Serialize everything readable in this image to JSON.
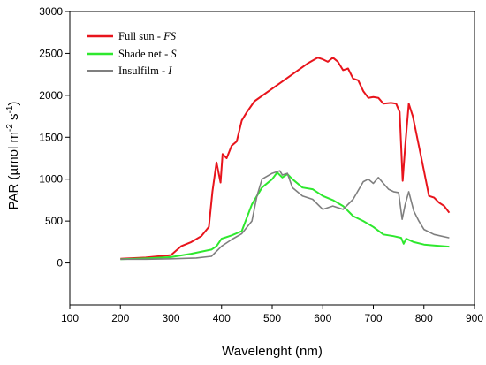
{
  "chart_data": {
    "type": "line",
    "xlabel": "Wavelenght (nm)",
    "ylabel": {
      "prefix": "PAR (µmol m",
      "exp1": "-2",
      "mid": " s",
      "exp2": "-1",
      "suffix": ")"
    },
    "xlim": [
      100,
      900
    ],
    "ylim": [
      -500,
      3000
    ],
    "x_ticks": [
      100,
      200,
      300,
      400,
      500,
      600,
      700,
      800,
      900
    ],
    "y_ticks": [
      0,
      500,
      1000,
      1500,
      2000,
      2500,
      3000
    ],
    "grid": false,
    "legend": "top-left",
    "series": [
      {
        "name": "Full sun - ",
        "name_italic": "FS",
        "color": "#e8141c",
        "points": [
          [
            200,
            50
          ],
          [
            250,
            65
          ],
          [
            300,
            95
          ],
          [
            320,
            200
          ],
          [
            340,
            250
          ],
          [
            360,
            320
          ],
          [
            375,
            430
          ],
          [
            382,
            850
          ],
          [
            390,
            1200
          ],
          [
            398,
            960
          ],
          [
            402,
            1300
          ],
          [
            410,
            1250
          ],
          [
            420,
            1400
          ],
          [
            430,
            1450
          ],
          [
            440,
            1700
          ],
          [
            450,
            1800
          ],
          [
            465,
            1930
          ],
          [
            500,
            2080
          ],
          [
            540,
            2250
          ],
          [
            570,
            2380
          ],
          [
            590,
            2450
          ],
          [
            600,
            2430
          ],
          [
            610,
            2400
          ],
          [
            620,
            2450
          ],
          [
            630,
            2400
          ],
          [
            640,
            2300
          ],
          [
            650,
            2320
          ],
          [
            660,
            2200
          ],
          [
            670,
            2180
          ],
          [
            680,
            2050
          ],
          [
            690,
            1970
          ],
          [
            700,
            1980
          ],
          [
            710,
            1970
          ],
          [
            720,
            1900
          ],
          [
            735,
            1910
          ],
          [
            745,
            1900
          ],
          [
            752,
            1800
          ],
          [
            758,
            980
          ],
          [
            763,
            1400
          ],
          [
            770,
            1900
          ],
          [
            778,
            1750
          ],
          [
            790,
            1400
          ],
          [
            800,
            1100
          ],
          [
            810,
            800
          ],
          [
            820,
            780
          ],
          [
            830,
            720
          ],
          [
            840,
            680
          ],
          [
            850,
            600
          ]
        ]
      },
      {
        "name": "Shade net - ",
        "name_italic": "S",
        "color": "#2ee82e",
        "points": [
          [
            200,
            45
          ],
          [
            250,
            55
          ],
          [
            300,
            70
          ],
          [
            340,
            110
          ],
          [
            380,
            160
          ],
          [
            390,
            200
          ],
          [
            400,
            290
          ],
          [
            420,
            330
          ],
          [
            440,
            380
          ],
          [
            460,
            700
          ],
          [
            480,
            900
          ],
          [
            500,
            1000
          ],
          [
            510,
            1080
          ],
          [
            520,
            1020
          ],
          [
            530,
            1060
          ],
          [
            540,
            1000
          ],
          [
            560,
            900
          ],
          [
            580,
            880
          ],
          [
            600,
            800
          ],
          [
            620,
            750
          ],
          [
            640,
            680
          ],
          [
            660,
            560
          ],
          [
            680,
            500
          ],
          [
            700,
            430
          ],
          [
            720,
            340
          ],
          [
            740,
            320
          ],
          [
            755,
            300
          ],
          [
            760,
            230
          ],
          [
            765,
            290
          ],
          [
            780,
            250
          ],
          [
            800,
            220
          ],
          [
            820,
            210
          ],
          [
            850,
            195
          ]
        ]
      },
      {
        "name": "Insulfilm - ",
        "name_italic": "I",
        "color": "#7f7f7f",
        "points": [
          [
            200,
            45
          ],
          [
            250,
            45
          ],
          [
            300,
            50
          ],
          [
            350,
            60
          ],
          [
            380,
            80
          ],
          [
            400,
            200
          ],
          [
            420,
            280
          ],
          [
            440,
            350
          ],
          [
            460,
            500
          ],
          [
            470,
            800
          ],
          [
            480,
            1000
          ],
          [
            500,
            1070
          ],
          [
            515,
            1100
          ],
          [
            520,
            1050
          ],
          [
            530,
            1070
          ],
          [
            540,
            900
          ],
          [
            560,
            800
          ],
          [
            580,
            760
          ],
          [
            600,
            640
          ],
          [
            620,
            680
          ],
          [
            640,
            640
          ],
          [
            660,
            760
          ],
          [
            680,
            970
          ],
          [
            690,
            1000
          ],
          [
            700,
            950
          ],
          [
            710,
            1020
          ],
          [
            720,
            950
          ],
          [
            730,
            880
          ],
          [
            740,
            850
          ],
          [
            750,
            840
          ],
          [
            757,
            520
          ],
          [
            763,
            700
          ],
          [
            770,
            850
          ],
          [
            780,
            620
          ],
          [
            790,
            500
          ],
          [
            800,
            400
          ],
          [
            820,
            340
          ],
          [
            850,
            300
          ]
        ]
      }
    ]
  }
}
